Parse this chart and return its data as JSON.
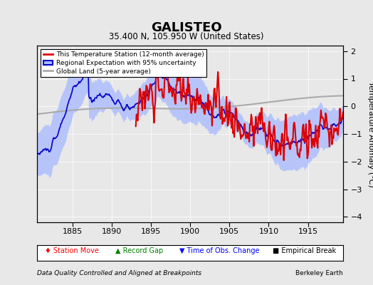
{
  "title": "GALISTEO",
  "subtitle": "35.400 N, 105.950 W (United States)",
  "xlabel_note": "Data Quality Controlled and Aligned at Breakpoints",
  "xlabel_note_right": "Berkeley Earth",
  "ylabel": "Temperature Anomaly (°C)",
  "xlim": [
    1880.5,
    1919.5
  ],
  "ylim": [
    -4.2,
    2.2
  ],
  "yticks": [
    -4,
    -3,
    -2,
    -1,
    0,
    1,
    2
  ],
  "xticks": [
    1885,
    1890,
    1895,
    1900,
    1905,
    1910,
    1915
  ],
  "bg_color": "#e8e8e8",
  "plot_bg_color": "#e8e8e8",
  "regional_fill_color": "#aabbff",
  "regional_line_color": "#0000cc",
  "station_line_color": "#dd0000",
  "global_land_color": "#aaaaaa",
  "legend_loc": "upper left",
  "time_start": 1880.5,
  "time_end": 1919.5,
  "n_points": 470
}
